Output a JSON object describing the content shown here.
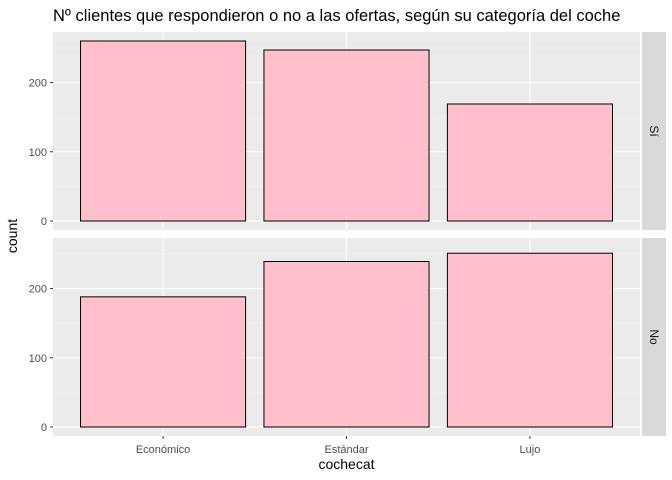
{
  "chart_data": {
    "type": "bar",
    "title": "Nº clientes que respondieron o no a las ofertas, según su categoría del coche",
    "xlabel": "cochecat",
    "ylabel": "count",
    "categories": [
      "Económico",
      "Estándar",
      "Lujo"
    ],
    "facets": [
      {
        "label": "Sí",
        "values": [
          260,
          247,
          169
        ]
      },
      {
        "label": "No",
        "values": [
          188,
          239,
          251
        ]
      }
    ],
    "ylim": [
      -13,
      273
    ],
    "yticks": [
      0,
      100,
      200
    ],
    "grid": true,
    "facet_layout": "rows",
    "strip_position": "right",
    "bar_fill": "#ffc0cb",
    "bar_stroke": "#000000",
    "panel_background": "#ebebeb",
    "strip_background": "#d9d9d9"
  }
}
